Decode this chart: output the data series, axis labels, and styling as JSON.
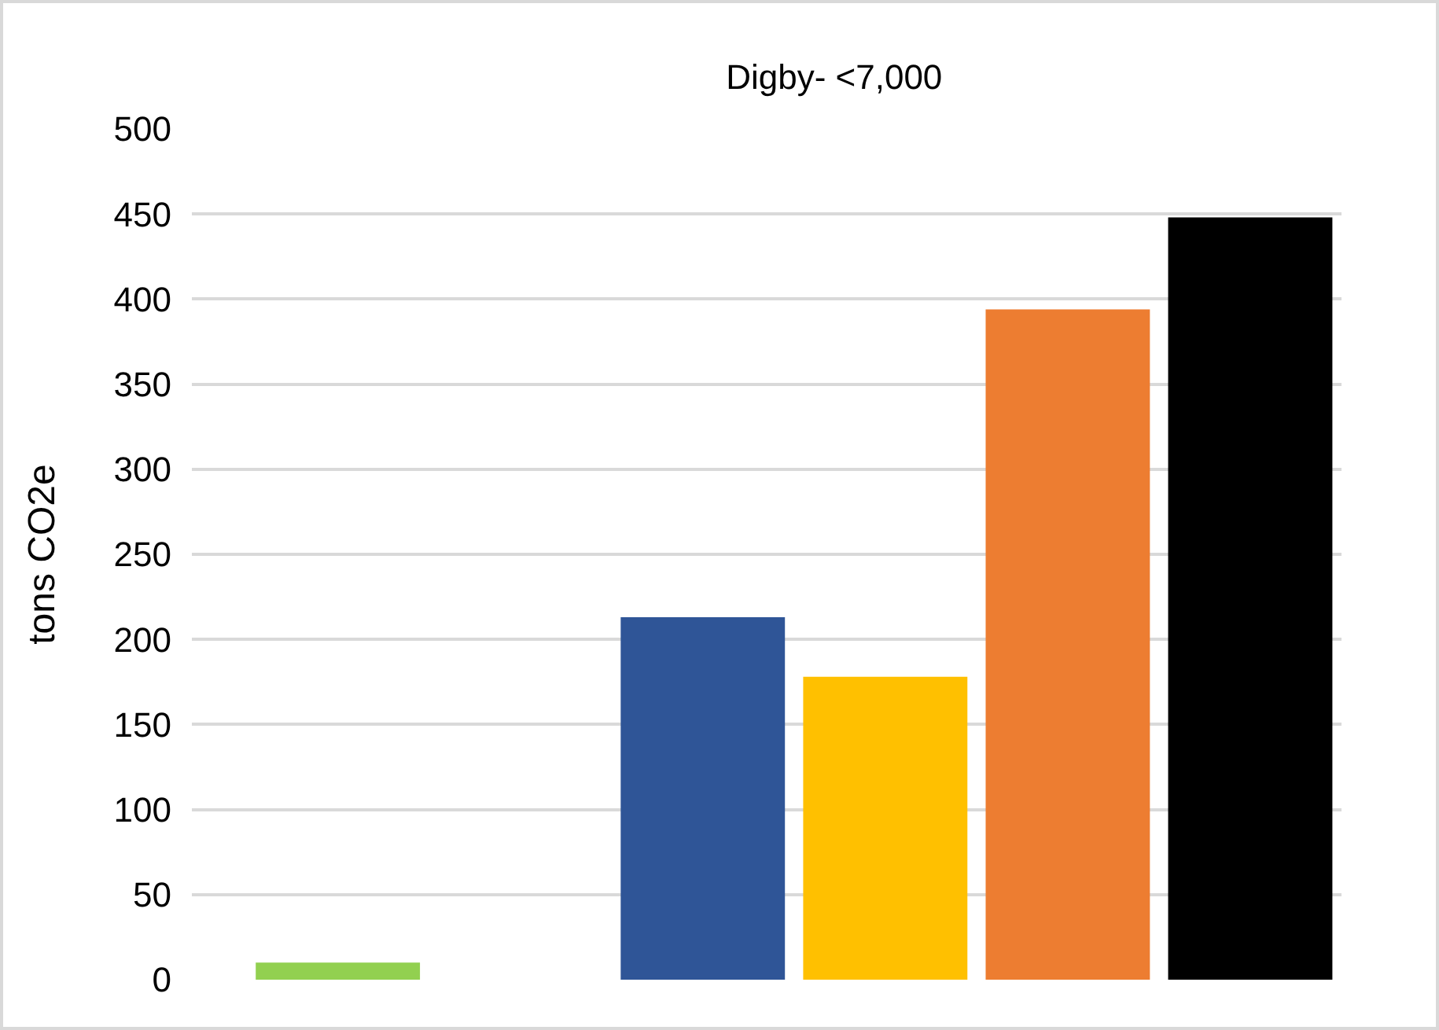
{
  "chart_data": {
    "type": "bar",
    "title": "Digby- <7,000",
    "ylabel": "tons CO2e",
    "categories": [
      null,
      null,
      null,
      null,
      null,
      null
    ],
    "values": [
      10,
      null,
      213,
      178,
      394,
      448
    ],
    "colors": [
      "#92d050",
      "#2f5597",
      "#2f5597",
      "#ffc000",
      "#ed7d31",
      "#000000"
    ],
    "ylim": [
      0,
      500
    ],
    "yticks": [
      0,
      50,
      100,
      150,
      200,
      250,
      300,
      350,
      400,
      450,
      500
    ],
    "grid": "y",
    "tick_labels": "y"
  }
}
